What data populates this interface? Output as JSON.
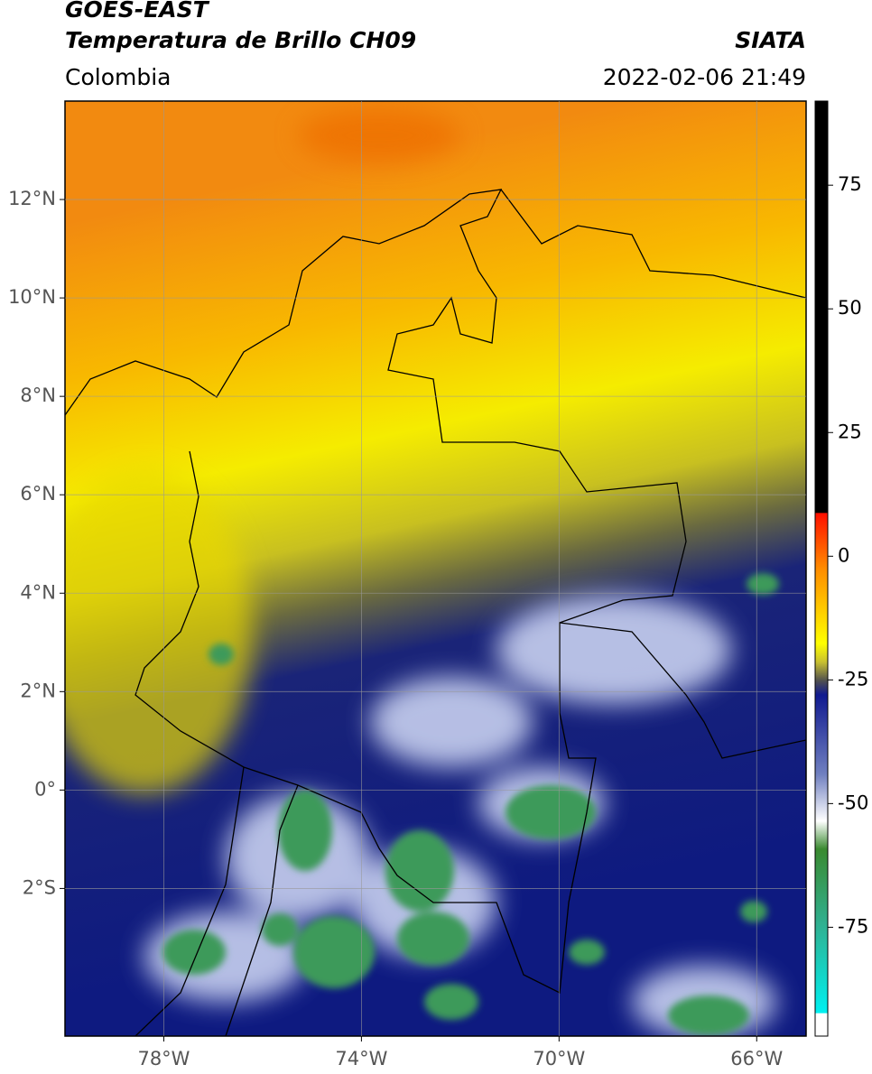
{
  "header": {
    "title": "GOES-EAST",
    "subtitle": "Temperatura de Brillo CH09",
    "source": "SIATA",
    "region": "Colombia",
    "datetime": "2022-02-06 21:49"
  },
  "map": {
    "xlim": [
      -80,
      -65
    ],
    "ylim": [
      -5,
      14
    ],
    "xticks": [
      {
        "value": -78,
        "label": "78°W"
      },
      {
        "value": -74,
        "label": "74°W"
      },
      {
        "value": -70,
        "label": "70°W"
      },
      {
        "value": -66,
        "label": "66°W"
      }
    ],
    "yticks": [
      {
        "value": 12,
        "label": "12°N"
      },
      {
        "value": 10,
        "label": "10°N"
      },
      {
        "value": 8,
        "label": "8°N"
      },
      {
        "value": 6,
        "label": "6°N"
      },
      {
        "value": 4,
        "label": "4°N"
      },
      {
        "value": 2,
        "label": "2°N"
      },
      {
        "value": 0,
        "label": "0°"
      },
      {
        "value": -2,
        "label": "2°S"
      }
    ]
  },
  "colorbar": {
    "lim": [
      -97,
      92
    ],
    "ticks": [
      75,
      50,
      25,
      0,
      -25,
      -50,
      -75
    ]
  }
}
